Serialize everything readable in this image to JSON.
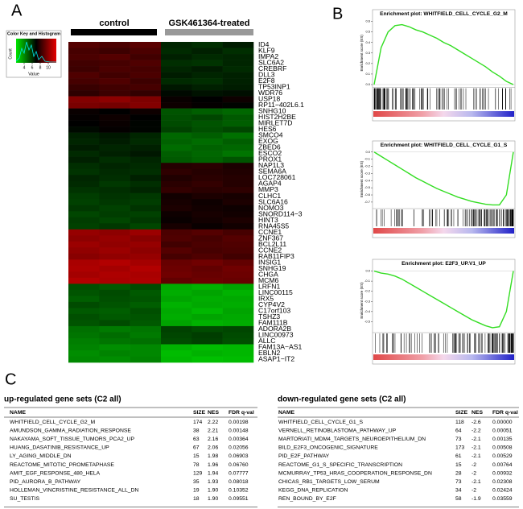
{
  "panels": {
    "a": "A",
    "b": "B",
    "c": "C"
  },
  "heatmap": {
    "group_labels": [
      "control",
      "GSK461364-treated"
    ],
    "color_key": {
      "title": "Color Key and Histogram",
      "xlabel": "Value",
      "ylabel": "Count",
      "xlim": [
        2,
        12
      ],
      "xticks": [
        4,
        6,
        8,
        10
      ]
    },
    "genes": [
      "ID4",
      "KLF9",
      "IMPA2",
      "SLC6A2",
      "CREBRF",
      "DLL3",
      "E2F8",
      "TP53INP1",
      "WDR76",
      "USP18",
      "RP11−402L6.1",
      "SNHG10",
      "HIST2H2BE",
      "MIRLET7D",
      "HES6",
      "SMCO4",
      "EXOG",
      "ZBED6",
      "ESCO2",
      "PROX1",
      "NAP1L3",
      "SEMA6A",
      "LOC728061",
      "AGAP4",
      "MMP3",
      "CLHC1",
      "SLC6A16",
      "NOMO3",
      "SNORD114−3",
      "HINT3",
      "RNA45S5",
      "CCNE1",
      "ZNF367",
      "BCL2L11",
      "CCNE2",
      "RAB11FIP3",
      "INSIG1",
      "SNHG19",
      "CHGA",
      "MCM6",
      "LRFN1",
      "LINC00115",
      "IRX5",
      "CYP4V2",
      "C17orf103",
      "TSHZ3",
      "FAM111B",
      "ADORA2B",
      "LINC00973",
      "ALLC",
      "FAM13A−AS1",
      "EBLN2",
      "ASAP1−IT2"
    ],
    "values": [
      [
        8.8,
        8.6,
        8.9,
        6.2,
        6.0,
        6.4
      ],
      [
        8.5,
        8.3,
        8.6,
        6.1,
        6.3,
        6.0
      ],
      [
        8.6,
        8.8,
        8.4,
        6.3,
        6.1,
        6.2
      ],
      [
        8.4,
        8.5,
        8.7,
        6.0,
        5.9,
        6.2
      ],
      [
        8.3,
        8.6,
        8.5,
        6.2,
        6.4,
        6.1
      ],
      [
        8.7,
        8.4,
        8.6,
        6.4,
        6.2,
        6.3
      ],
      [
        8.5,
        8.7,
        8.3,
        6.1,
        6.0,
        6.3
      ],
      [
        8.2,
        8.4,
        8.5,
        6.5,
        6.3,
        6.4
      ],
      [
        8.0,
        8.3,
        8.1,
        6.8,
        6.6,
        6.7
      ],
      [
        9.8,
        10.0,
        9.7,
        7.2,
        7.0,
        7.3
      ],
      [
        9.6,
        9.5,
        9.8,
        7.3,
        7.1,
        6.9
      ],
      [
        7.2,
        7.0,
        7.3,
        5.2,
        5.0,
        4.8
      ],
      [
        7.1,
        7.3,
        7.0,
        5.3,
        5.5,
        5.1
      ],
      [
        7.0,
        7.2,
        6.9,
        5.4,
        5.2,
        5.0
      ],
      [
        6.8,
        7.1,
        6.9,
        5.6,
        5.3,
        5.5
      ],
      [
        6.3,
        6.5,
        6.2,
        4.8,
        5.0,
        4.6
      ],
      [
        6.2,
        6.4,
        6.1,
        4.9,
        4.7,
        5.0
      ],
      [
        6.4,
        6.2,
        6.3,
        4.7,
        4.9,
        4.8
      ],
      [
        6.1,
        6.3,
        6.5,
        5.0,
        4.8,
        4.5
      ],
      [
        6.3,
        6.0,
        6.2,
        5.1,
        4.9,
        5.2
      ],
      [
        6.0,
        6.2,
        6.1,
        7.8,
        7.9,
        7.6
      ],
      [
        5.9,
        6.1,
        6.0,
        8.0,
        7.8,
        7.7
      ],
      [
        6.2,
        6.0,
        6.3,
        7.7,
        7.9,
        7.8
      ],
      [
        6.1,
        5.8,
        6.0,
        7.9,
        8.1,
        7.8
      ],
      [
        5.9,
        6.0,
        6.2,
        8.1,
        7.9,
        8.0
      ],
      [
        5.7,
        5.9,
        5.8,
        7.4,
        7.6,
        7.5
      ],
      [
        5.6,
        5.8,
        5.7,
        7.5,
        7.3,
        7.6
      ],
      [
        5.8,
        5.6,
        5.9,
        7.6,
        7.4,
        7.3
      ],
      [
        5.5,
        5.7,
        5.6,
        7.3,
        7.5,
        7.4
      ],
      [
        5.7,
        5.5,
        5.8,
        7.2,
        7.4,
        7.6
      ],
      [
        5.6,
        5.8,
        5.5,
        7.5,
        7.2,
        7.4
      ],
      [
        10.2,
        10.0,
        10.3,
        8.6,
        8.8,
        8.5
      ],
      [
        10.0,
        10.2,
        9.9,
        8.7,
        8.5,
        8.8
      ],
      [
        10.3,
        10.1,
        10.2,
        8.4,
        8.6,
        8.7
      ],
      [
        10.1,
        10.3,
        10.0,
        8.8,
        8.5,
        8.6
      ],
      [
        9.9,
        10.1,
        10.2,
        8.5,
        8.7,
        8.4
      ],
      [
        10.6,
        10.8,
        10.5,
        9.2,
        9.4,
        9.1
      ],
      [
        10.7,
        10.5,
        10.8,
        9.3,
        9.1,
        9.4
      ],
      [
        10.5,
        10.7,
        10.6,
        9.4,
        9.2,
        9.3
      ],
      [
        10.8,
        10.6,
        10.7,
        9.1,
        9.3,
        9.2
      ],
      [
        5.3,
        5.1,
        5.4,
        3.4,
        3.2,
        3.5
      ],
      [
        5.2,
        5.4,
        5.1,
        3.3,
        3.5,
        3.2
      ],
      [
        5.0,
        5.3,
        5.2,
        3.5,
        3.3,
        3.4
      ],
      [
        5.4,
        5.2,
        5.0,
        3.2,
        3.4,
        3.3
      ],
      [
        5.1,
        5.0,
        5.3,
        3.4,
        3.1,
        3.5
      ],
      [
        5.3,
        5.1,
        5.2,
        3.3,
        3.5,
        3.4
      ],
      [
        5.2,
        5.4,
        5.1,
        3.5,
        3.2,
        3.3
      ],
      [
        4.6,
        4.4,
        4.5,
        5.6,
        5.4,
        5.5
      ],
      [
        4.5,
        4.7,
        4.4,
        5.5,
        5.7,
        5.4
      ],
      [
        4.3,
        4.5,
        4.6,
        5.4,
        5.6,
        5.3
      ],
      [
        4.2,
        4.0,
        4.1,
        3.2,
        3.0,
        3.1
      ],
      [
        4.0,
        4.2,
        4.1,
        3.0,
        3.2,
        3.1
      ],
      [
        4.1,
        4.0,
        4.2,
        3.1,
        2.9,
        3.0
      ]
    ]
  },
  "gsea": [
    {
      "title": "Enrichment plot: WHITFIELD_CELL_CYCLE_G2_M",
      "ylabel": "Enrichment score (ES)",
      "color": "#33dd22",
      "values": [
        0,
        0.35,
        0.5,
        0.56,
        0.57,
        0.55,
        0.52,
        0.5,
        0.47,
        0.44,
        0.4,
        0.37,
        0.33,
        0.29,
        0.25,
        0.21,
        0.17,
        0.12,
        0.08,
        0.03,
        0
      ],
      "ylim": [
        -0.02,
        0.62
      ],
      "yticks": [
        {
          "value": 0,
          "label": "0.0"
        },
        {
          "value": 0.1,
          "label": "0.1"
        },
        {
          "value": 0.2,
          "label": "0.2"
        },
        {
          "value": 0.3,
          "label": "0.3"
        },
        {
          "value": 0.4,
          "label": "0.4"
        },
        {
          "value": 0.5,
          "label": "0.5"
        },
        {
          "value": 0.6,
          "label": "0.6"
        }
      ]
    },
    {
      "title": "Enrichment plot: WHITFIELD_CELL_CYCLE_G1_S",
      "ylabel": "Enrichment score (ES)",
      "color": "#33dd22",
      "values": [
        0,
        -0.06,
        -0.12,
        -0.18,
        -0.24,
        -0.3,
        -0.36,
        -0.41,
        -0.46,
        -0.51,
        -0.55,
        -0.59,
        -0.63,
        -0.66,
        -0.69,
        -0.71,
        -0.73,
        -0.74,
        -0.74,
        -0.6,
        0
      ],
      "ylim": [
        -0.78,
        0.02
      ],
      "yticks": [
        {
          "value": 0,
          "label": "0.0"
        },
        {
          "value": -0.1,
          "label": "-0.1"
        },
        {
          "value": -0.2,
          "label": "-0.2"
        },
        {
          "value": -0.3,
          "label": "-0.3"
        },
        {
          "value": -0.4,
          "label": "-0.4"
        },
        {
          "value": -0.5,
          "label": "-0.5"
        },
        {
          "value": -0.6,
          "label": "-0.6"
        },
        {
          "value": -0.7,
          "label": "-0.7"
        }
      ]
    },
    {
      "title": "Enrichment plot: E2F3_UP.V1_UP",
      "ylabel": "Enrichment score (ES)",
      "color": "#33dd22",
      "values": [
        0,
        -0.02,
        -0.03,
        -0.05,
        -0.08,
        -0.12,
        -0.16,
        -0.2,
        -0.24,
        -0.28,
        -0.32,
        -0.36,
        -0.4,
        -0.44,
        -0.48,
        -0.51,
        -0.54,
        -0.56,
        -0.55,
        -0.4,
        0
      ],
      "ylim": [
        -0.6,
        0.02
      ],
      "yticks": [
        {
          "value": 0,
          "label": "0.0"
        },
        {
          "value": -0.1,
          "label": "-0.1"
        },
        {
          "value": -0.2,
          "label": "-0.2"
        },
        {
          "value": -0.3,
          "label": "-0.3"
        },
        {
          "value": -0.4,
          "label": "-0.4"
        },
        {
          "value": -0.5,
          "label": "-0.5"
        }
      ]
    }
  ],
  "tables": [
    {
      "title": "up-regulated gene sets (C2 all)",
      "columns": [
        "NAME",
        "SIZE",
        "NES",
        "FDR q-val"
      ],
      "rows": [
        [
          "WHITFIELD_CELL_CYCLE_G2_M",
          "174",
          "2.22",
          "0.00198"
        ],
        [
          "AMUNDSON_GAMMA_RADIATION_RESPONSE",
          "38",
          "2.21",
          "0.00148"
        ],
        [
          "NAKAYAMA_SOFT_TISSUE_TUMORS_PCA2_UP",
          "63",
          "2.16",
          "0.00364"
        ],
        [
          "HUANG_DASATINIB_RESISTANCE_UP",
          "67",
          "2.06",
          "0.02056"
        ],
        [
          "LY_AGING_MIDDLE_DN",
          "15",
          "1.98",
          "0.06903"
        ],
        [
          "REACTOME_MITOTIC_PROMETAPHASE",
          "78",
          "1.96",
          "0.06760"
        ],
        [
          "AMIT_EGF_RESPONSE_480_HELA",
          "129",
          "1.94",
          "0.07777"
        ],
        [
          "PID_AURORA_B_PATHWAY",
          "35",
          "1.93",
          "0.08018"
        ],
        [
          "HOLLEMAN_VINCRISTINE_RESISTANCE_ALL_DN",
          "19",
          "1.90",
          "0.10352"
        ],
        [
          "SU_TESTIS",
          "18",
          "1.90",
          "0.09551"
        ]
      ]
    },
    {
      "title": "down-regulated gene sets (C2 all)",
      "columns": [
        "NAME",
        "SIZE",
        "NES",
        "FDR q-val"
      ],
      "rows": [
        [
          "WHITFIELD_CELL_CYCLE_G1_S",
          "118",
          "-2.6",
          "0.00000"
        ],
        [
          "VERNELL_RETINOBLASTOMA_PATHWAY_UP",
          "64",
          "-2.2",
          "0.00051"
        ],
        [
          "MARTORIATI_MDM4_TARGETS_NEUROEPITHELIUM_DN",
          "73",
          "-2.1",
          "0.00135"
        ],
        [
          "BILD_E2F3_ONCOGENIC_SIGNATURE",
          "173",
          "-2.1",
          "0.00508"
        ],
        [
          "PID_E2F_PATHWAY",
          "61",
          "-2.1",
          "0.00529"
        ],
        [
          "REACTOME_G1_S_SPECIFIC_TRANSCRIPTION",
          "15",
          "-2",
          "0.00764"
        ],
        [
          "MCMURRAY_TP53_HRAS_COOPERATION_RESPONSE_DN",
          "28",
          "-2",
          "0.00932"
        ],
        [
          "CHICAS_RB1_TARGETS_LOW_SERUM",
          "73",
          "-2.1",
          "0.02308"
        ],
        [
          "KEGG_DNA_REPLICATION",
          "34",
          "-2",
          "0.02424"
        ],
        [
          "REN_BOUND_BY_E2F",
          "58",
          "-1.9",
          "0.03559"
        ]
      ]
    }
  ]
}
